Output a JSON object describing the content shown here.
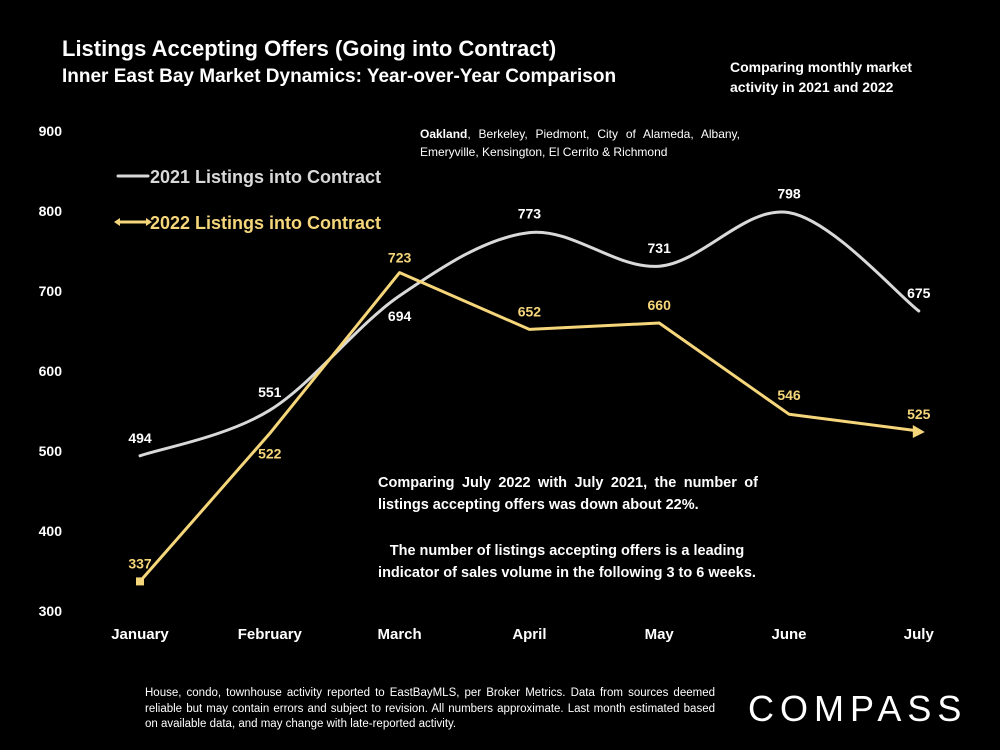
{
  "header": {
    "title": "Listings Accepting Offers (Going into Contract)",
    "subtitle": "Inner East Bay Market Dynamics: Year-over-Year Comparison",
    "side_note": "Comparing monthly market activity in 2021 and 2022"
  },
  "cities": {
    "lead": "Oakland",
    "rest": ", Berkeley, Piedmont, City of Alameda, Albany, Emeryville, Kensington, El Cerrito & Richmond"
  },
  "annotations": {
    "comparison": "Comparing July 2022 with July 2021, the number of listings accepting offers was down about 22%.",
    "indicator": "The number of listings accepting offers is a leading indicator of sales volume in the following 3 to 6 weeks."
  },
  "footnote": "House, condo, townhouse activity reported to EastBayMLS, per Broker Metrics. Data from sources deemed reliable but may contain errors and subject to revision. All numbers approximate. Last month estimated based on available data, and may change with late-reported activity.",
  "brand": "COMPASS",
  "colors": {
    "background": "#000000",
    "series_2021": "#d9d9d9",
    "series_2022": "#f5d67a"
  },
  "chart_data": {
    "type": "line",
    "title": "Listings Accepting Offers (Going into Contract)",
    "categories": [
      "January",
      "February",
      "March",
      "April",
      "May",
      "June",
      "July"
    ],
    "series": [
      {
        "name": "2021 Listings into Contract",
        "values": [
          494,
          551,
          694,
          773,
          731,
          798,
          675
        ],
        "smooth": true,
        "color": "#d9d9d9"
      },
      {
        "name": "2022 Listings into Contract",
        "values": [
          337,
          522,
          723,
          652,
          660,
          546,
          525
        ],
        "smooth": false,
        "color": "#f5d67a"
      }
    ],
    "ylim": [
      300,
      900
    ],
    "yticks": [
      300,
      400,
      500,
      600,
      700,
      800,
      900
    ],
    "xlabel": "",
    "ylabel": "",
    "legend_position": "top-left",
    "grid": false
  }
}
